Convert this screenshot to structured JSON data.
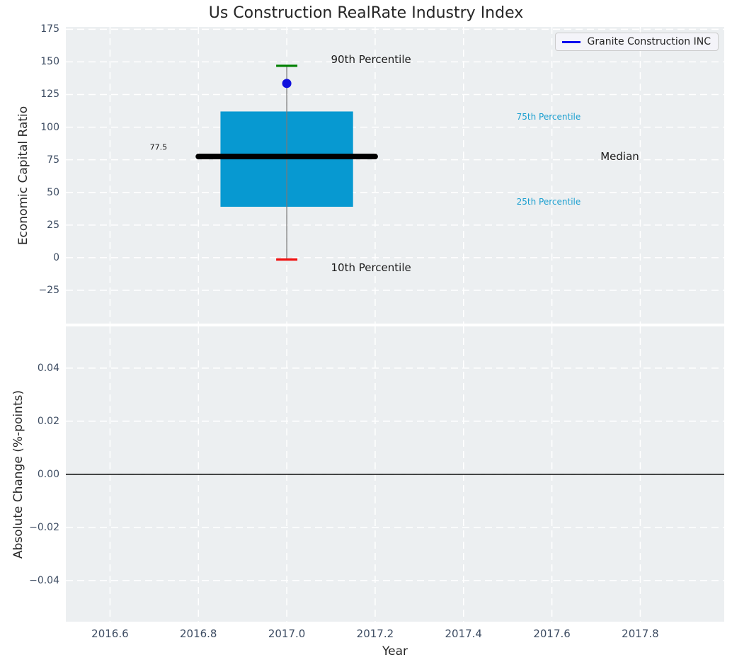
{
  "figure": {
    "background": "#ffffff",
    "axes_background": "#eceff1",
    "grid_color": "#ffffff",
    "tick_color": "#3e4d63",
    "text_color": "#262626"
  },
  "chart_data": [
    {
      "type": "box",
      "title": "Us Construction RealRate Industry Index",
      "ylabel": "Economic Capital Ratio",
      "xlim": [
        2016.5,
        2017.99
      ],
      "ylim": [
        -50.5,
        176.8
      ],
      "yticks": [
        175,
        150,
        125,
        100,
        75,
        50,
        25,
        0,
        -25
      ],
      "ytick_labels": [
        "175",
        "150",
        "125",
        "100",
        "75",
        "50",
        "25",
        "0",
        "−25"
      ],
      "grid": "white dashed, on",
      "legend": {
        "label": "Granite Construction INC",
        "line_color": "#0000ee",
        "position": "upper right"
      },
      "series_x": 2017.0,
      "box": {
        "q1": 39,
        "median": 77.5,
        "q3": 112,
        "p10": -1.4,
        "p90": 147,
        "company_value": 133.5,
        "box_half_width": 0.15,
        "median_half_width": 0.2,
        "cap_half_width": 0.024,
        "box_color": "#0799d1",
        "median_color": "#000000",
        "whisker_color": "#7a7a7a",
        "p90_cap_color": "#008000",
        "p10_cap_color": "#f01010",
        "marker_color": "#1010dd"
      },
      "annotations": [
        {
          "text": "90th Percentile",
          "x": 2017.1,
          "y": 152,
          "color": "#1a1a1a",
          "size": 15
        },
        {
          "text": "10th Percentile",
          "x": 2017.1,
          "y": -7.5,
          "color": "#1a1a1a",
          "size": 15
        },
        {
          "text": "75th Percentile",
          "x": 2017.52,
          "y": 108,
          "color": "#1b9fd0",
          "size": 12
        },
        {
          "text": "25th Percentile",
          "x": 2017.52,
          "y": 43,
          "color": "#1b9fd0",
          "size": 12
        },
        {
          "text": "Median",
          "x": 2017.71,
          "y": 77.5,
          "color": "#1a1a1a",
          "size": 15
        },
        {
          "text": "77.5",
          "x": 2016.69,
          "y": 84.5,
          "color": "#1a1a1a",
          "size": 11
        }
      ]
    },
    {
      "type": "line",
      "ylabel": "Absolute Change (%-points)",
      "xlabel": "Year",
      "xlim": [
        2016.5,
        2017.99
      ],
      "ylim": [
        -0.0555,
        0.0557
      ],
      "yticks": [
        0.04,
        0.02,
        0,
        -0.02,
        -0.04
      ],
      "ytick_labels": [
        "0.04",
        "0.02",
        "0.00",
        "−0.02",
        "−0.04"
      ],
      "xticks": [
        2016.6,
        2016.8,
        2017.0,
        2017.2,
        2017.4,
        2017.6,
        2017.8
      ],
      "xtick_labels": [
        "2016.6",
        "2016.8",
        "2017.0",
        "2017.2",
        "2017.4",
        "2017.6",
        "2017.8"
      ],
      "grid": "white dashed, on",
      "zero_line": {
        "y": 0,
        "color": "#000000"
      },
      "series": []
    }
  ]
}
